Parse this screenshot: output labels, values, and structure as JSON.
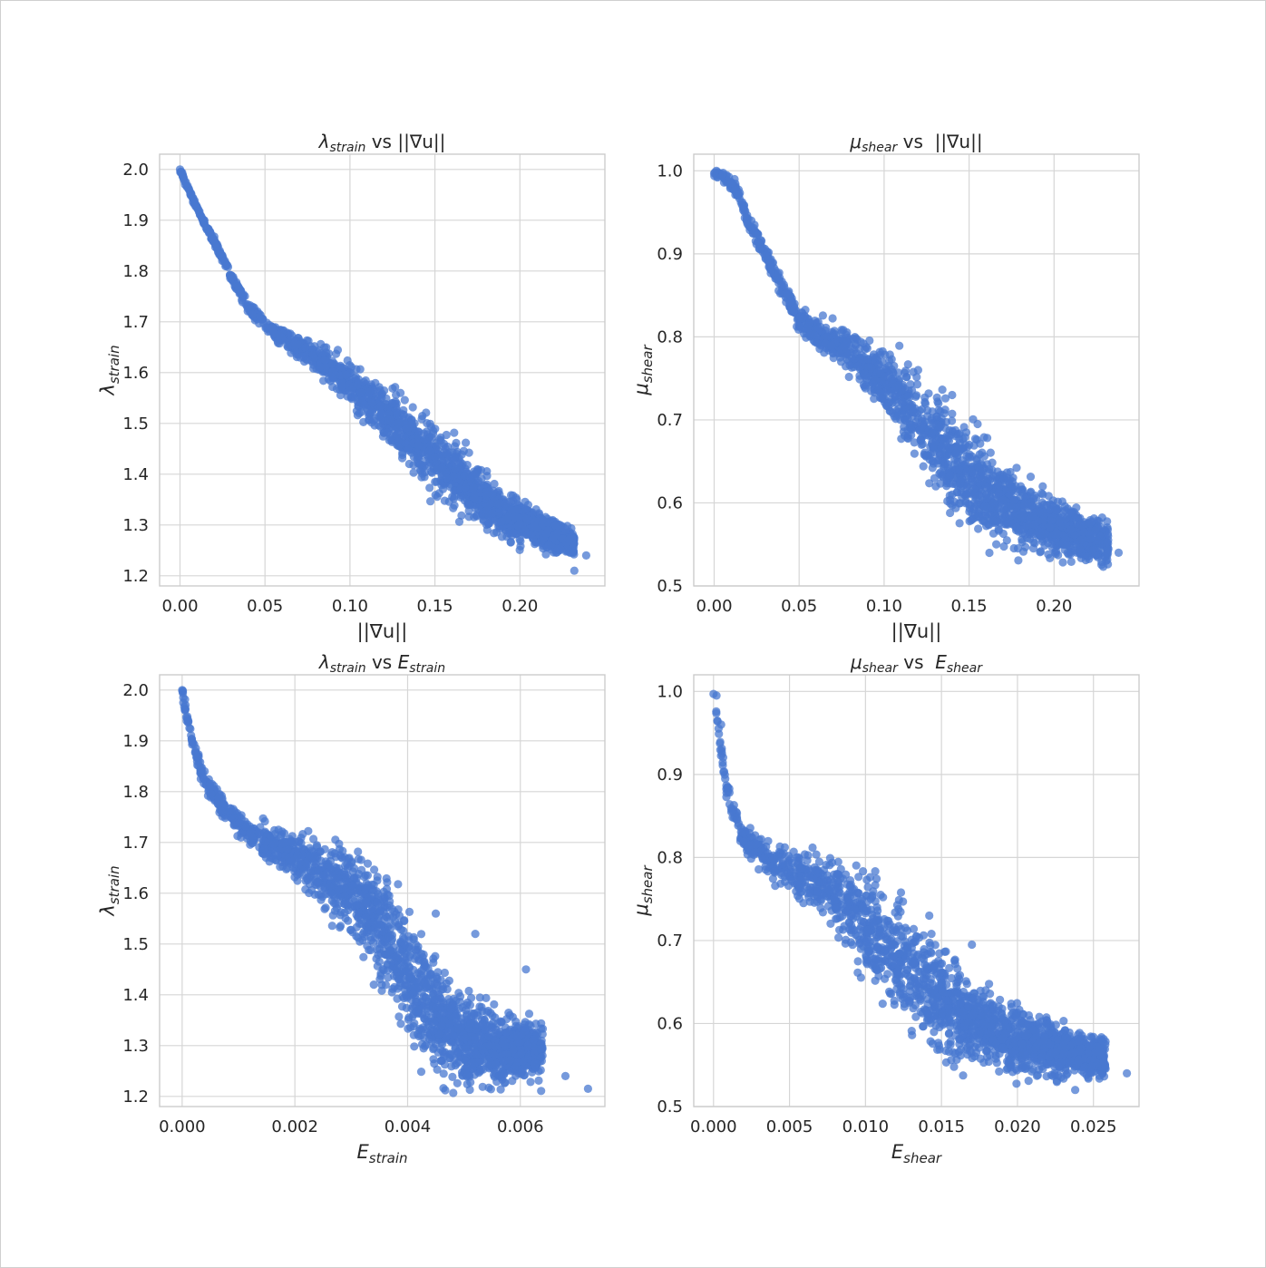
{
  "figure": {
    "marker_color": "#4878d0",
    "background": "#ffffff",
    "grid": true
  },
  "chart_data": [
    {
      "type": "scatter",
      "title": {
        "a": "λ",
        "a_sub": "strain",
        "vs": " vs ",
        "b": "||∇u||",
        "b_sub": ""
      },
      "xlabel": {
        "main": "||∇u||",
        "sub": "",
        "italic": false
      },
      "ylabel": {
        "main": "λ",
        "sub": "strain"
      },
      "xlim": [
        -0.012,
        0.25
      ],
      "ylim": [
        1.18,
        2.03
      ],
      "xticks": [
        0.0,
        0.05,
        0.1,
        0.15,
        0.2
      ],
      "xtick_labels": [
        "0.00",
        "0.05",
        "0.10",
        "0.15",
        "0.20"
      ],
      "yticks": [
        1.2,
        1.3,
        1.4,
        1.5,
        1.6,
        1.7,
        1.8,
        1.9,
        2.0
      ],
      "ytick_labels": [
        "1.2",
        "1.3",
        "1.4",
        "1.5",
        "1.6",
        "1.7",
        "1.8",
        "1.9",
        "2.0"
      ],
      "trend": [
        [
          0.0,
          2.0
        ],
        [
          0.005,
          1.96
        ],
        [
          0.012,
          1.91
        ],
        [
          0.02,
          1.86
        ],
        [
          0.03,
          1.79
        ],
        [
          0.04,
          1.73
        ],
        [
          0.05,
          1.695
        ],
        [
          0.06,
          1.67
        ],
        [
          0.08,
          1.63
        ],
        [
          0.1,
          1.58
        ],
        [
          0.12,
          1.52
        ],
        [
          0.14,
          1.46
        ],
        [
          0.16,
          1.4
        ],
        [
          0.18,
          1.345
        ],
        [
          0.2,
          1.305
        ],
        [
          0.215,
          1.285
        ],
        [
          0.23,
          1.265
        ]
      ],
      "spread": [
        [
          0.0,
          0.002
        ],
        [
          0.05,
          0.006
        ],
        [
          0.08,
          0.012
        ],
        [
          0.1,
          0.018
        ],
        [
          0.13,
          0.028
        ],
        [
          0.16,
          0.03
        ],
        [
          0.2,
          0.02
        ],
        [
          0.23,
          0.012
        ]
      ],
      "count": 1800,
      "x_extent": [
        0.0,
        0.232
      ],
      "seed": 11,
      "outliers": [
        [
          0.0,
          2.0
        ],
        [
          0.003,
          1.97
        ],
        [
          0.006,
          1.955
        ],
        [
          0.138,
          1.5
        ],
        [
          0.155,
          1.455
        ],
        [
          0.232,
          1.21
        ],
        [
          0.239,
          1.24
        ],
        [
          0.125,
          1.54
        ],
        [
          0.09,
          1.59
        ]
      ]
    },
    {
      "type": "scatter",
      "title": {
        "a": "μ",
        "a_sub": "shear",
        "vs": " vs  ",
        "b": "||∇u||",
        "b_sub": ""
      },
      "xlabel": {
        "main": "||∇u||",
        "sub": "",
        "italic": false
      },
      "ylabel": {
        "main": "μ",
        "sub": "shear"
      },
      "xlim": [
        -0.012,
        0.25
      ],
      "ylim": [
        0.5,
        1.02
      ],
      "xticks": [
        0.0,
        0.05,
        0.1,
        0.15,
        0.2
      ],
      "xtick_labels": [
        "0.00",
        "0.05",
        "0.10",
        "0.15",
        "0.20"
      ],
      "yticks": [
        0.5,
        0.6,
        0.7,
        0.8,
        0.9,
        1.0
      ],
      "ytick_labels": [
        "0.5",
        "0.6",
        "0.7",
        "0.8",
        "0.9",
        "1.0"
      ],
      "trend": [
        [
          0.0,
          0.998
        ],
        [
          0.008,
          0.99
        ],
        [
          0.015,
          0.97
        ],
        [
          0.02,
          0.94
        ],
        [
          0.03,
          0.9
        ],
        [
          0.04,
          0.86
        ],
        [
          0.05,
          0.82
        ],
        [
          0.06,
          0.805
        ],
        [
          0.08,
          0.785
        ],
        [
          0.1,
          0.745
        ],
        [
          0.12,
          0.7
        ],
        [
          0.14,
          0.655
        ],
        [
          0.16,
          0.615
        ],
        [
          0.18,
          0.585
        ],
        [
          0.2,
          0.57
        ],
        [
          0.22,
          0.56
        ],
        [
          0.23,
          0.55
        ]
      ],
      "spread": [
        [
          0.0,
          0.002
        ],
        [
          0.05,
          0.006
        ],
        [
          0.08,
          0.012
        ],
        [
          0.1,
          0.018
        ],
        [
          0.12,
          0.026
        ],
        [
          0.15,
          0.028
        ],
        [
          0.18,
          0.018
        ],
        [
          0.23,
          0.012
        ]
      ],
      "count": 1800,
      "x_extent": [
        0.0,
        0.232
      ],
      "seed": 23,
      "outliers": [
        [
          0.0,
          0.997
        ],
        [
          0.005,
          0.996
        ],
        [
          0.012,
          0.99
        ],
        [
          0.14,
          0.73
        ],
        [
          0.155,
          0.695
        ],
        [
          0.229,
          0.523
        ],
        [
          0.238,
          0.54
        ],
        [
          0.12,
          0.76
        ],
        [
          0.07,
          0.78
        ]
      ]
    },
    {
      "type": "scatter",
      "title": {
        "a": "λ",
        "a_sub": "strain",
        "vs": " vs ",
        "b": "E",
        "b_sub": "strain"
      },
      "xlabel": {
        "main": "E",
        "sub": "strain",
        "italic": true
      },
      "ylabel": {
        "main": "λ",
        "sub": "strain"
      },
      "xlim": [
        -0.0004,
        0.0075
      ],
      "ylim": [
        1.18,
        2.03
      ],
      "xticks": [
        0.0,
        0.002,
        0.004,
        0.006
      ],
      "xtick_labels": [
        "0.000",
        "0.002",
        "0.004",
        "0.006"
      ],
      "yticks": [
        1.2,
        1.3,
        1.4,
        1.5,
        1.6,
        1.7,
        1.8,
        1.9,
        2.0
      ],
      "ytick_labels": [
        "1.2",
        "1.3",
        "1.4",
        "1.5",
        "1.6",
        "1.7",
        "1.8",
        "1.9",
        "2.0"
      ],
      "trend": [
        [
          0.0,
          2.0
        ],
        [
          0.0001,
          1.94
        ],
        [
          0.0002,
          1.89
        ],
        [
          0.0004,
          1.82
        ],
        [
          0.0008,
          1.76
        ],
        [
          0.0012,
          1.72
        ],
        [
          0.002,
          1.67
        ],
        [
          0.0028,
          1.62
        ],
        [
          0.0034,
          1.56
        ],
        [
          0.0038,
          1.48
        ],
        [
          0.0042,
          1.4
        ],
        [
          0.0046,
          1.34
        ],
        [
          0.005,
          1.31
        ],
        [
          0.0056,
          1.295
        ],
        [
          0.0062,
          1.29
        ]
      ],
      "spread": [
        [
          0.0,
          0.004
        ],
        [
          0.001,
          0.012
        ],
        [
          0.002,
          0.02
        ],
        [
          0.003,
          0.035
        ],
        [
          0.0038,
          0.055
        ],
        [
          0.0044,
          0.05
        ],
        [
          0.005,
          0.04
        ],
        [
          0.0063,
          0.025
        ]
      ],
      "count": 1900,
      "x_extent": [
        0.0,
        0.0064
      ],
      "seed": 37,
      "outliers": [
        [
          0.0,
          2.0
        ],
        [
          2e-05,
          1.975
        ],
        [
          5e-05,
          1.96
        ],
        [
          0.0068,
          1.24
        ],
        [
          0.0072,
          1.215
        ],
        [
          0.0061,
          1.45
        ],
        [
          0.0052,
          1.52
        ],
        [
          0.0045,
          1.56
        ],
        [
          0.0034,
          1.42
        ]
      ]
    },
    {
      "type": "scatter",
      "title": {
        "a": "μ",
        "a_sub": "shear",
        "vs": " vs  ",
        "b": "E",
        "b_sub": "shear"
      },
      "xlabel": {
        "main": "E",
        "sub": "shear",
        "italic": true
      },
      "ylabel": {
        "main": "μ",
        "sub": "shear"
      },
      "xlim": [
        -0.0013,
        0.028
      ],
      "ylim": [
        0.5,
        1.02
      ],
      "xticks": [
        0.0,
        0.005,
        0.01,
        0.015,
        0.02,
        0.025
      ],
      "xtick_labels": [
        "0.000",
        "0.005",
        "0.010",
        "0.015",
        "0.020",
        "0.025"
      ],
      "yticks": [
        0.5,
        0.6,
        0.7,
        0.8,
        0.9,
        1.0
      ],
      "ytick_labels": [
        "0.5",
        "0.6",
        "0.7",
        "0.8",
        "0.9",
        "1.0"
      ],
      "trend": [
        [
          0.0,
          0.998
        ],
        [
          0.0003,
          0.96
        ],
        [
          0.0007,
          0.9
        ],
        [
          0.0012,
          0.86
        ],
        [
          0.002,
          0.82
        ],
        [
          0.004,
          0.795
        ],
        [
          0.006,
          0.78
        ],
        [
          0.008,
          0.755
        ],
        [
          0.01,
          0.72
        ],
        [
          0.012,
          0.68
        ],
        [
          0.014,
          0.645
        ],
        [
          0.016,
          0.615
        ],
        [
          0.018,
          0.595
        ],
        [
          0.02,
          0.58
        ],
        [
          0.022,
          0.57
        ],
        [
          0.025,
          0.56
        ]
      ],
      "spread": [
        [
          0.0,
          0.003
        ],
        [
          0.002,
          0.008
        ],
        [
          0.006,
          0.015
        ],
        [
          0.01,
          0.028
        ],
        [
          0.014,
          0.032
        ],
        [
          0.018,
          0.02
        ],
        [
          0.025,
          0.012
        ]
      ],
      "count": 1900,
      "x_extent": [
        0.0,
        0.0258
      ],
      "seed": 53,
      "outliers": [
        [
          0.0,
          0.997
        ],
        [
          0.0002,
          0.995
        ],
        [
          0.0005,
          0.96
        ],
        [
          0.0272,
          0.54
        ],
        [
          0.0238,
          0.52
        ],
        [
          0.017,
          0.695
        ],
        [
          0.0142,
          0.73
        ],
        [
          0.011,
          0.755
        ],
        [
          0.009,
          0.765
        ]
      ]
    }
  ]
}
